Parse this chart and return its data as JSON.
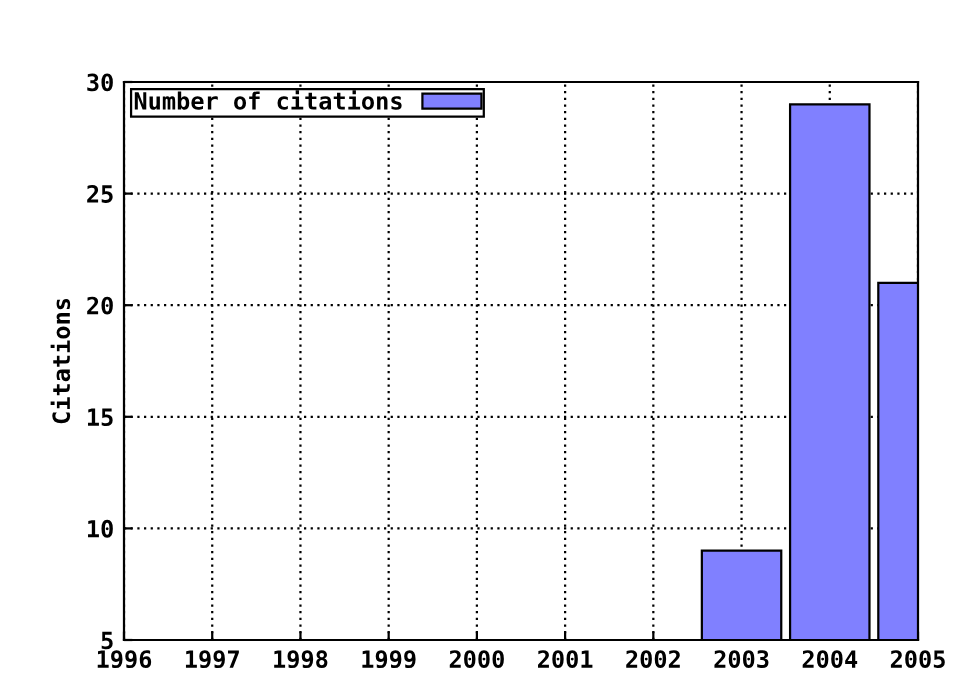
{
  "chart_data": {
    "type": "bar",
    "ylabel": "Citations",
    "x": [
      2003,
      2004,
      2005
    ],
    "series": [
      {
        "name": "Number of citations",
        "color": "#8080ff",
        "values": [
          9,
          29,
          21
        ]
      }
    ],
    "xlim": [
      1996,
      2005
    ],
    "xticks": [
      1996,
      1997,
      1998,
      1999,
      2000,
      2001,
      2002,
      2003,
      2004,
      2005
    ],
    "ylim": [
      5,
      30
    ],
    "yticks": [
      5,
      10,
      15,
      20,
      25,
      30
    ],
    "grid": true,
    "legend": "top left"
  }
}
